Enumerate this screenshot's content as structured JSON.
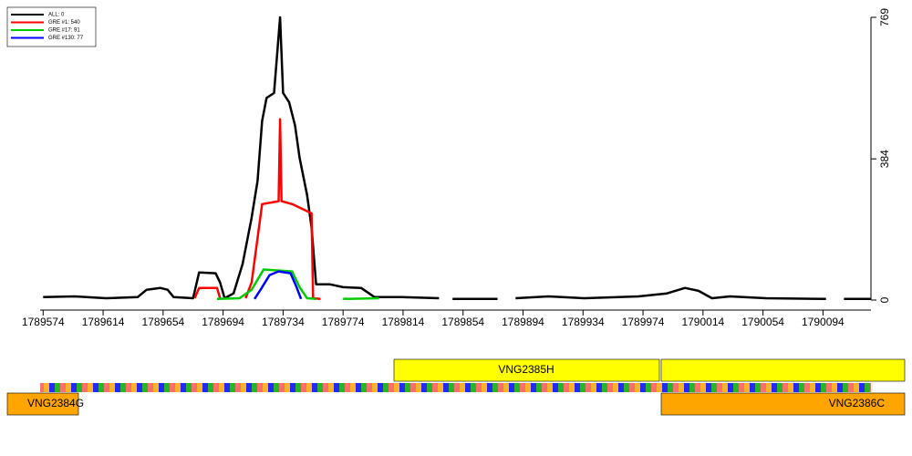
{
  "chart_data": {
    "type": "line",
    "xlim": [
      1789572,
      1790126
    ],
    "xticks": [
      1789574,
      1789614,
      1789654,
      1789694,
      1789734,
      1789774,
      1789814,
      1789854,
      1789894,
      1789934,
      1789974,
      1790014,
      1790054,
      1790094
    ],
    "ylim": [
      0,
      769
    ],
    "yticks": [
      0,
      384,
      769
    ],
    "legend": "top-left",
    "series": [
      {
        "name": "ALL: 0",
        "color": "#000000",
        "x": [
          1789574,
          1789595,
          1789616,
          1789637,
          1789643,
          1789652,
          1789657,
          1789661,
          1789674,
          1789678,
          1789689,
          1789692,
          1789695,
          1789701,
          1789707,
          1789713,
          1789717,
          1789720,
          1789723,
          1789728,
          1789732,
          1789734,
          1789738,
          1789742,
          1789745,
          1789750,
          1789753,
          1789756,
          1789765,
          1789774,
          1789786,
          1789795,
          1789813,
          1789838,
          1789842,
          1789847,
          1789877,
          1789883,
          1789889,
          1789911,
          1789935,
          1789971,
          1789990,
          1790002,
          1790011,
          1790020,
          1790032,
          1790056,
          1790096,
          1790102,
          1790108,
          1790126
        ],
        "values": [
          8,
          10,
          5,
          8,
          28,
          33,
          28,
          8,
          5,
          75,
          73,
          48,
          5,
          18,
          98,
          224,
          324,
          487,
          550,
          563,
          769,
          563,
          538,
          475,
          387,
          286,
          198,
          43,
          43,
          35,
          33,
          8,
          8,
          5,
          null,
          3,
          3,
          null,
          5,
          10,
          5,
          10,
          18,
          33,
          25,
          5,
          10,
          5,
          3,
          null,
          3,
          3
        ]
      },
      {
        "name": "GRE #1: 540",
        "color": "#ff0000",
        "x": [
          1789675,
          1789678,
          1789690,
          1789692,
          1789700,
          1789709,
          1789713,
          1789720,
          1789731,
          1789732,
          1789733,
          1789740,
          1789753,
          1789754,
          1789759
        ],
        "values": [
          5,
          33,
          33,
          5,
          null,
          5,
          48,
          261,
          269,
          492,
          269,
          261,
          236,
          5,
          3
        ]
      },
      {
        "name": "GRE #17: 91",
        "color": "#00cc00",
        "x": [
          1789690,
          1789705,
          1789713,
          1789721,
          1789740,
          1789745,
          1789750,
          1789756,
          1789765,
          1789774,
          1789798
        ],
        "values": [
          3,
          5,
          28,
          83,
          78,
          35,
          5,
          3,
          null,
          3,
          5
        ]
      },
      {
        "name": "GRE #130: 77",
        "color": "#0000ff",
        "x": [
          1789715,
          1789719,
          1789725,
          1789731,
          1789739,
          1789743,
          1789746
        ],
        "values": [
          3,
          28,
          68,
          78,
          73,
          35,
          3
        ]
      }
    ]
  },
  "genes": [
    "VNG2384G",
    "VNG2385H",
    "VNG2386C"
  ]
}
